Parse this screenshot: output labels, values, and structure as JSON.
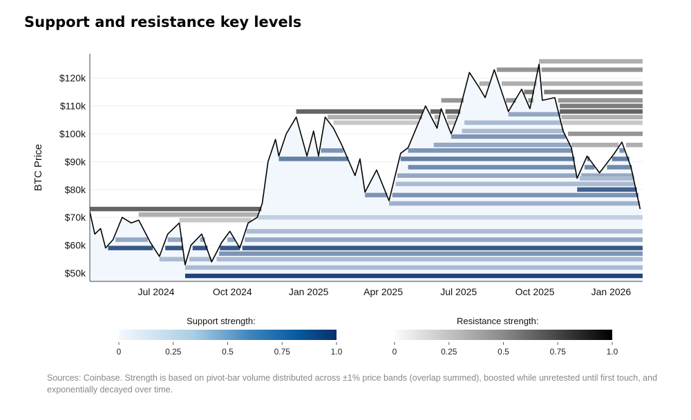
{
  "title": "Support and resistance key levels",
  "legend": {
    "support_title": "Support strength:",
    "resistance_title": "Resistance strength:",
    "ticks": [
      "0",
      "0.25",
      "0.5",
      "0.75",
      "1.0"
    ]
  },
  "note": "Sources: Coinbase. Strength is based on pivot-bar volume distributed across ±1% price bands (overlap summed), boosted while unretested until first touch, and exponentially decayed over time.",
  "colors": {
    "support_low": "#f1f7fd",
    "support_high": "#08306b",
    "resistance_low": "#fafafa",
    "resistance_high": "#000000",
    "price": "#000000"
  },
  "chart_data": {
    "type": "line",
    "title": "Support and resistance key levels",
    "ylabel": "BTC Price",
    "xlabel": "",
    "xlim": [
      "2024-04-12",
      "2026-02-08"
    ],
    "ylim": [
      47,
      129
    ],
    "yticks": [
      50,
      60,
      70,
      80,
      90,
      100,
      110,
      120
    ],
    "ytick_labels": [
      "$50k",
      "$60k",
      "$70k",
      "$80k",
      "$90k",
      "$100k",
      "$110k",
      "$120k"
    ],
    "xticks": [
      "2024-07-01",
      "2024-10-01",
      "2025-01-01",
      "2025-04-01",
      "2025-07-01",
      "2025-10-01",
      "2026-01-01"
    ],
    "xtick_labels": [
      "Jul 2024",
      "Oct 2024",
      "Jan 2025",
      "Apr 2025",
      "Jul 2025",
      "Oct 2025",
      "Jan 2026"
    ],
    "price_series": {
      "name": "BTC Price ($k)",
      "points": [
        [
          "2024-04-12",
          72
        ],
        [
          "2024-04-18",
          64
        ],
        [
          "2024-04-25",
          66
        ],
        [
          "2024-05-01",
          59
        ],
        [
          "2024-05-10",
          62
        ],
        [
          "2024-05-21",
          70
        ],
        [
          "2024-06-01",
          68
        ],
        [
          "2024-06-10",
          69
        ],
        [
          "2024-06-24",
          61
        ],
        [
          "2024-07-05",
          56
        ],
        [
          "2024-07-15",
          64
        ],
        [
          "2024-07-29",
          68
        ],
        [
          "2024-08-05",
          53
        ],
        [
          "2024-08-12",
          60
        ],
        [
          "2024-08-25",
          64
        ],
        [
          "2024-09-06",
          54
        ],
        [
          "2024-09-18",
          61
        ],
        [
          "2024-09-28",
          65
        ],
        [
          "2024-10-10",
          59
        ],
        [
          "2024-10-20",
          68
        ],
        [
          "2024-10-31",
          70
        ],
        [
          "2024-11-06",
          75
        ],
        [
          "2024-11-13",
          90
        ],
        [
          "2024-11-22",
          98
        ],
        [
          "2024-11-26",
          92
        ],
        [
          "2024-12-05",
          100
        ],
        [
          "2024-12-17",
          106
        ],
        [
          "2024-12-30",
          92
        ],
        [
          "2025-01-07",
          101
        ],
        [
          "2025-01-13",
          92
        ],
        [
          "2025-01-21",
          106
        ],
        [
          "2025-01-31",
          102
        ],
        [
          "2025-02-10",
          96
        ],
        [
          "2025-02-26",
          85
        ],
        [
          "2025-03-04",
          91
        ],
        [
          "2025-03-10",
          79
        ],
        [
          "2025-03-24",
          87
        ],
        [
          "2025-04-08",
          76
        ],
        [
          "2025-04-22",
          93
        ],
        [
          "2025-05-01",
          95
        ],
        [
          "2025-05-22",
          110
        ],
        [
          "2025-06-05",
          102
        ],
        [
          "2025-06-10",
          109
        ],
        [
          "2025-06-22",
          100
        ],
        [
          "2025-07-01",
          107
        ],
        [
          "2025-07-14",
          122
        ],
        [
          "2025-07-25",
          117
        ],
        [
          "2025-08-02",
          113
        ],
        [
          "2025-08-13",
          123
        ],
        [
          "2025-08-30",
          108
        ],
        [
          "2025-09-15",
          116
        ],
        [
          "2025-09-25",
          109
        ],
        [
          "2025-10-06",
          125
        ],
        [
          "2025-10-10",
          112
        ],
        [
          "2025-10-25",
          113
        ],
        [
          "2025-11-04",
          101
        ],
        [
          "2025-11-14",
          95
        ],
        [
          "2025-11-21",
          84
        ],
        [
          "2025-12-03",
          92
        ],
        [
          "2025-12-18",
          86
        ],
        [
          "2026-01-05",
          93
        ],
        [
          "2026-01-14",
          97
        ],
        [
          "2026-01-25",
          88
        ],
        [
          "2026-02-05",
          73
        ]
      ]
    },
    "support_bands": [
      {
        "level": 59,
        "strength": 0.8,
        "start": "2024-05-01"
      },
      {
        "level": 62,
        "strength": 0.4,
        "start": "2024-05-01"
      },
      {
        "level": 55,
        "strength": 0.3,
        "start": "2024-07-05"
      },
      {
        "level": 49,
        "strength": 0.9,
        "start": "2024-08-05"
      },
      {
        "level": 52,
        "strength": 0.3,
        "start": "2024-08-05"
      },
      {
        "level": 57,
        "strength": 0.5,
        "start": "2024-09-06"
      },
      {
        "level": 65,
        "strength": 0.3,
        "start": "2024-10-15"
      },
      {
        "level": 70,
        "strength": 0.2,
        "start": "2024-11-01"
      },
      {
        "level": 75,
        "strength": 0.35,
        "start": "2025-04-08"
      },
      {
        "level": 78,
        "strength": 0.5,
        "start": "2025-03-10"
      },
      {
        "level": 82,
        "strength": 0.3,
        "start": "2025-04-10"
      },
      {
        "level": 85,
        "strength": 0.4,
        "start": "2025-04-15"
      },
      {
        "level": 88,
        "strength": 0.55,
        "start": "2025-05-01"
      },
      {
        "level": 91,
        "strength": 0.6,
        "start": "2024-11-26"
      },
      {
        "level": 94,
        "strength": 0.5,
        "start": "2025-01-13"
      },
      {
        "level": 96,
        "strength": 0.4,
        "start": "2025-06-01"
      },
      {
        "level": 99,
        "strength": 0.5,
        "start": "2025-06-22"
      },
      {
        "level": 101,
        "strength": 0.3,
        "start": "2025-07-05"
      },
      {
        "level": 104,
        "strength": 0.3,
        "start": "2025-07-08"
      },
      {
        "level": 107,
        "strength": 0.4,
        "start": "2025-08-30"
      },
      {
        "level": 80,
        "strength": 0.75,
        "start": "2025-11-21"
      },
      {
        "level": 84,
        "strength": 0.3,
        "start": "2025-11-21"
      }
    ],
    "resistance_bands": [
      {
        "level": 73,
        "strength": 0.6,
        "start": "2024-04-12"
      },
      {
        "level": 71,
        "strength": 0.3,
        "start": "2024-06-10"
      },
      {
        "level": 69,
        "strength": 0.2,
        "start": "2024-07-29"
      },
      {
        "level": 108,
        "strength": 0.6,
        "start": "2024-12-17"
      },
      {
        "level": 106,
        "strength": 0.3,
        "start": "2025-01-21"
      },
      {
        "level": 104,
        "strength": 0.2,
        "start": "2025-01-31"
      },
      {
        "level": 112,
        "strength": 0.4,
        "start": "2025-06-10"
      },
      {
        "level": 118,
        "strength": 0.3,
        "start": "2025-07-14"
      },
      {
        "level": 123,
        "strength": 0.4,
        "start": "2025-08-13"
      },
      {
        "level": 126,
        "strength": 0.3,
        "start": "2025-10-06"
      },
      {
        "level": 115,
        "strength": 0.5,
        "start": "2025-09-15"
      },
      {
        "level": 110,
        "strength": 0.5,
        "start": "2025-10-25"
      },
      {
        "level": 100,
        "strength": 0.4,
        "start": "2025-11-04"
      },
      {
        "level": 96,
        "strength": 0.3,
        "start": "2025-11-14"
      }
    ],
    "legend_placement": "bottom",
    "colorbars": [
      {
        "name": "Support strength",
        "range": [
          0,
          1
        ]
      },
      {
        "name": "Resistance strength",
        "range": [
          0,
          1
        ]
      }
    ]
  }
}
